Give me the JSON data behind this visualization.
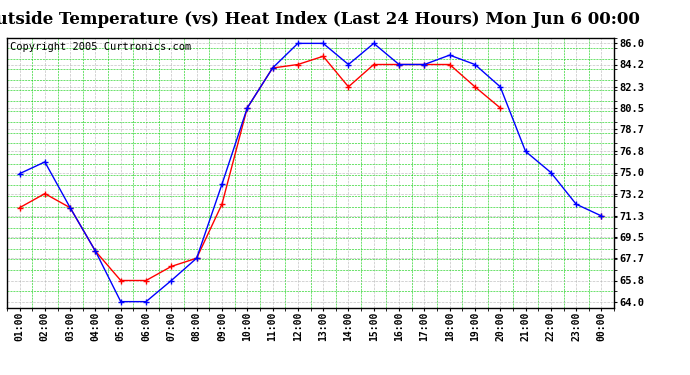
{
  "title": "Outside Temperature (vs) Heat Index (Last 24 Hours) Mon Jun 6 00:00",
  "copyright": "Copyright 2005 Curtronics.com",
  "x_labels": [
    "01:00",
    "02:00",
    "03:00",
    "04:00",
    "05:00",
    "06:00",
    "07:00",
    "08:00",
    "09:00",
    "10:00",
    "11:00",
    "12:00",
    "13:00",
    "14:00",
    "15:00",
    "16:00",
    "17:00",
    "18:00",
    "19:00",
    "20:00",
    "21:00",
    "22:00",
    "23:00",
    "00:00"
  ],
  "blue_data": [
    74.9,
    75.9,
    72.0,
    68.3,
    64.0,
    64.0,
    65.8,
    67.7,
    74.0,
    80.5,
    83.9,
    86.0,
    86.0,
    84.2,
    86.0,
    84.2,
    84.2,
    85.0,
    84.2,
    82.3,
    76.8,
    75.0,
    72.3,
    71.3
  ],
  "red_data": [
    72.0,
    73.2,
    72.0,
    68.3,
    65.8,
    65.8,
    67.0,
    67.7,
    72.3,
    80.5,
    83.9,
    84.2,
    84.9,
    82.3,
    84.2,
    84.2,
    84.2,
    84.2,
    82.3,
    80.5,
    null,
    null,
    null,
    71.3
  ],
  "y_ticks": [
    64.0,
    65.8,
    67.7,
    69.5,
    71.3,
    73.2,
    75.0,
    76.8,
    78.7,
    80.5,
    82.3,
    84.2,
    86.0
  ],
  "y_min": 63.5,
  "y_max": 86.5,
  "blue_color": "#0000ff",
  "red_color": "#ff0000",
  "plot_bg_color": "#ffffff",
  "grid_color_major": "#aaaaaa",
  "grid_color_minor": "#00cc00",
  "title_fontsize": 12,
  "copyright_fontsize": 7.5
}
